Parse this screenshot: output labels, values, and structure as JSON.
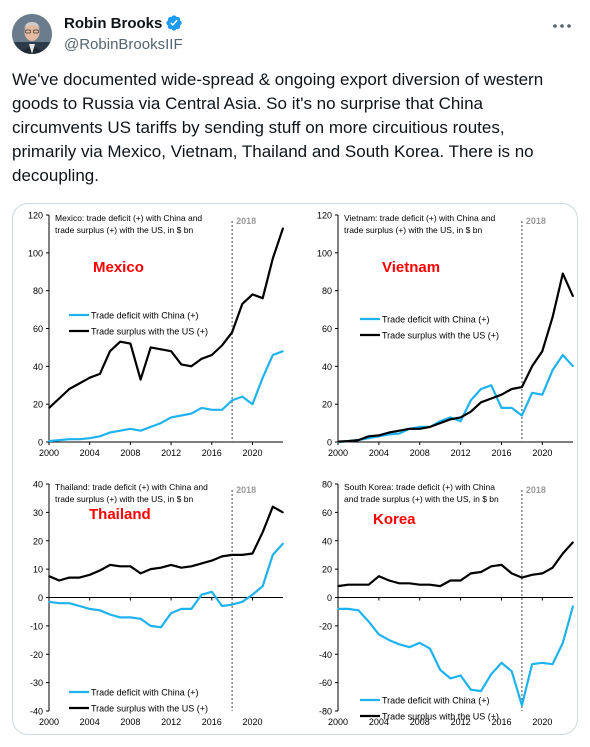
{
  "tweet": {
    "author_name": "Robin Brooks",
    "author_handle": "@RobinBrooksIIF",
    "verified": true,
    "text_lines": [
      "We've documented wide-spread & ongoing export diversion of western",
      "goods to Russia via Central Asia. So it's no surprise that China",
      "circumvents US tariffs by sending stuff on more circuitious routes,",
      "primarily via Mexico, Vietnam, Thailand and South Korea. There is no",
      "decoupling."
    ],
    "icons": {
      "verified": "verified-badge-icon",
      "more": "more-options-icon"
    },
    "colors": {
      "verified": "#1d9bf0",
      "handle": "#536471",
      "border": "#cfd9de"
    }
  },
  "chart_data": [
    {
      "type": "line",
      "country": "Mexico",
      "note_lines": [
        "Mexico: trade deficit (+) with China and",
        "trade surplus (+) with the US, in $ bn"
      ],
      "marker_label": "2018",
      "marker_x": 2018,
      "xlim": [
        2000,
        2023
      ],
      "ylim": [
        0,
        120
      ],
      "yticks": [
        0,
        20,
        40,
        60,
        80,
        100,
        120
      ],
      "xticks": [
        2000,
        2004,
        2008,
        2012,
        2016,
        2020
      ],
      "legend_loc": "center-left",
      "x": [
        2000,
        2001,
        2002,
        2003,
        2004,
        2005,
        2006,
        2007,
        2008,
        2009,
        2010,
        2011,
        2012,
        2013,
        2014,
        2015,
        2016,
        2017,
        2018,
        2019,
        2020,
        2021,
        2022,
        2023
      ],
      "series": [
        {
          "name": "Trade deficit with China (+)",
          "color": "#1fb3ee",
          "values": [
            0.5,
            1,
            1.5,
            1.5,
            2,
            3,
            5,
            6,
            7,
            6,
            8,
            10,
            13,
            14,
            15,
            18,
            17,
            17,
            22,
            24,
            20,
            34,
            46,
            48
          ]
        },
        {
          "name": "Trade surplus with the US (+)",
          "color": "#000000",
          "values": [
            18,
            23,
            28,
            31,
            34,
            36,
            48,
            53,
            52,
            33,
            50,
            49,
            48,
            41,
            40,
            44,
            46,
            51,
            58,
            73,
            78,
            76,
            97,
            113
          ]
        }
      ]
    },
    {
      "type": "line",
      "country": "Vietnam",
      "note_lines": [
        "Vietnam: trade deficit (+) with China and",
        "trade surplus (+) with the US, in $ bn"
      ],
      "marker_label": "2018",
      "marker_x": 2018,
      "xlim": [
        2000,
        2023
      ],
      "ylim": [
        0,
        120
      ],
      "yticks": [
        0,
        20,
        40,
        60,
        80,
        100,
        120
      ],
      "xticks": [
        2000,
        2004,
        2008,
        2012,
        2016,
        2020
      ],
      "legend_loc": "center-left",
      "x": [
        2000,
        2001,
        2002,
        2003,
        2004,
        2005,
        2006,
        2007,
        2008,
        2009,
        2010,
        2011,
        2012,
        2013,
        2014,
        2015,
        2016,
        2017,
        2018,
        2019,
        2020,
        2021,
        2022,
        2023
      ],
      "series": [
        {
          "name": "Trade deficit with China (+)",
          "color": "#1fb3ee",
          "values": [
            0,
            0.5,
            1,
            2,
            3,
            4,
            4.5,
            7,
            8,
            8,
            11,
            13,
            11,
            22,
            28,
            30,
            18,
            18,
            14,
            26,
            25,
            38,
            46,
            40
          ]
        },
        {
          "name": "Trade surplus with the US (+)",
          "color": "#000000",
          "values": [
            0.2,
            0.5,
            1,
            3,
            3.5,
            5,
            6,
            7,
            7,
            8,
            10,
            12,
            13,
            16,
            21,
            23,
            25,
            28,
            29,
            40,
            48,
            66,
            89,
            77
          ]
        }
      ]
    },
    {
      "type": "line",
      "country": "Thailand",
      "note_lines": [
        "Thailand: trade deficit (+) with China and",
        "trade surplus (+) with the US, in $ bn"
      ],
      "marker_label": "2018",
      "marker_x": 2018,
      "xlim": [
        2000,
        2023
      ],
      "ylim": [
        -40,
        40
      ],
      "yticks": [
        -40,
        -30,
        -20,
        -10,
        0,
        10,
        20,
        30,
        40
      ],
      "xticks": [
        2000,
        2004,
        2008,
        2012,
        2016,
        2020
      ],
      "legend_loc": "bottom-left",
      "x": [
        2000,
        2001,
        2002,
        2003,
        2004,
        2005,
        2006,
        2007,
        2008,
        2009,
        2010,
        2011,
        2012,
        2013,
        2014,
        2015,
        2016,
        2017,
        2018,
        2019,
        2020,
        2021,
        2022,
        2023
      ],
      "series": [
        {
          "name": "Trade deficit with China (+)",
          "color": "#1fb3ee",
          "values": [
            -1.5,
            -2,
            -2,
            -3,
            -4,
            -4.5,
            -6,
            -7,
            -7,
            -7.5,
            -10,
            -10.5,
            -5.5,
            -4,
            -4,
            1,
            2,
            -3,
            -2.5,
            -1.5,
            1,
            4,
            15,
            19
          ]
        },
        {
          "name": "Trade surplus with the US (+)",
          "color": "#000000",
          "values": [
            7.5,
            6,
            7,
            7,
            8,
            9.5,
            11.5,
            11,
            11,
            8.5,
            10,
            10.5,
            11.5,
            10.5,
            11,
            12,
            13,
            14.5,
            15,
            15,
            15.5,
            23,
            32,
            30
          ]
        }
      ]
    },
    {
      "type": "line",
      "country": "Korea",
      "note_lines": [
        "South Korea: trade deficit (+) with China",
        "and trade surplus (+) with the US, in $ bn"
      ],
      "marker_label": "2018",
      "marker_x": 2018,
      "xlim": [
        2000,
        2023
      ],
      "ylim": [
        -80,
        80
      ],
      "yticks": [
        -80,
        -60,
        -40,
        -20,
        0,
        20,
        40,
        60,
        80
      ],
      "xticks": [
        2000,
        2004,
        2008,
        2012,
        2016,
        2020
      ],
      "legend_loc": "bottom-left",
      "x": [
        2000,
        2001,
        2002,
        2003,
        2004,
        2005,
        2006,
        2007,
        2008,
        2009,
        2010,
        2011,
        2012,
        2013,
        2014,
        2015,
        2016,
        2017,
        2018,
        2019,
        2020,
        2021,
        2022,
        2023
      ],
      "series": [
        {
          "name": "Trade deficit with China (+)",
          "color": "#1fb3ee",
          "values": [
            -8,
            -8,
            -9,
            -17,
            -26,
            -30,
            -33,
            -35,
            -32,
            -36,
            -51,
            -57,
            -55,
            -65,
            -66,
            -54,
            -46,
            -52,
            -76,
            -47,
            -46,
            -47,
            -32,
            -6
          ]
        },
        {
          "name": "Trade surplus with the US (+)",
          "color": "#000000",
          "values": [
            8,
            9,
            9,
            9,
            15,
            12,
            10,
            10,
            9,
            9,
            8,
            12,
            12,
            17,
            18,
            22,
            23,
            17,
            14,
            16,
            17,
            21,
            31,
            39
          ]
        }
      ]
    }
  ]
}
